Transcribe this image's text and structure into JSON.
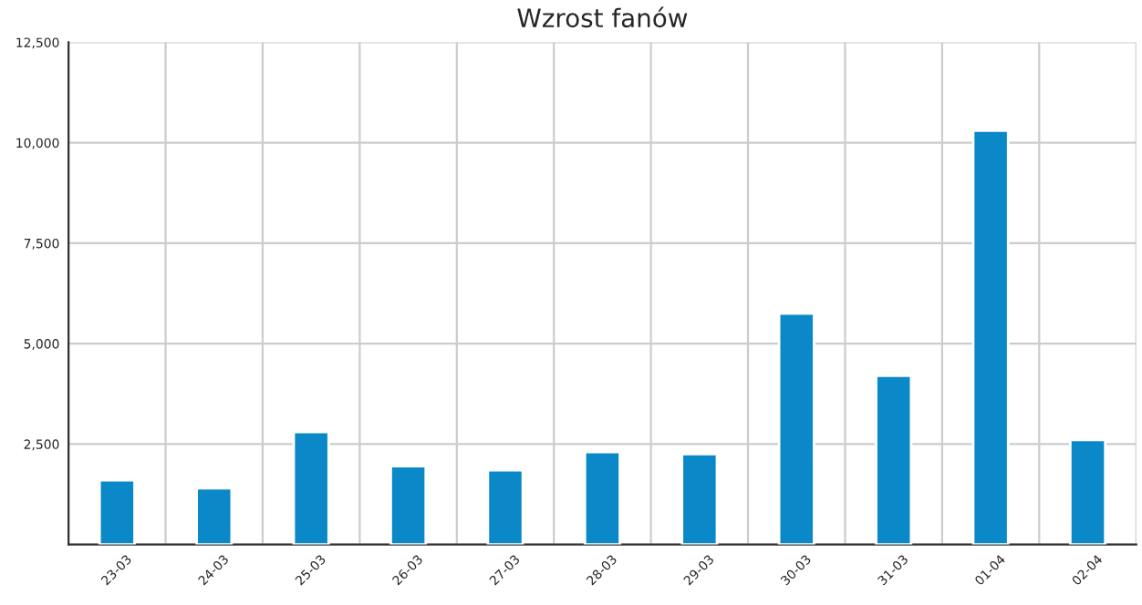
{
  "chart_data": {
    "type": "bar",
    "title": "Wzrost fanów",
    "categories": [
      "23-03",
      "24-03",
      "25-03",
      "26-03",
      "27-03",
      "28-03",
      "29-03",
      "30-03",
      "31-03",
      "01-04",
      "02-04"
    ],
    "series": [
      {
        "color": "#0a88c8",
        "values": [
          1600,
          1400,
          2800,
          1950,
          1850,
          2300,
          2250,
          5750,
          4200,
          10300,
          2600
        ]
      }
    ],
    "ylim": [
      0,
      12500
    ],
    "yticks": [
      {
        "value": 0,
        "label": null
      },
      {
        "value": 2500,
        "label": "2,500"
      },
      {
        "value": 5000,
        "label": "5,000"
      },
      {
        "value": 7500,
        "label": "7,500"
      },
      {
        "value": 10000,
        "label": "10,000"
      },
      {
        "value": 12500,
        "label": "12,500"
      }
    ],
    "grid": true
  }
}
